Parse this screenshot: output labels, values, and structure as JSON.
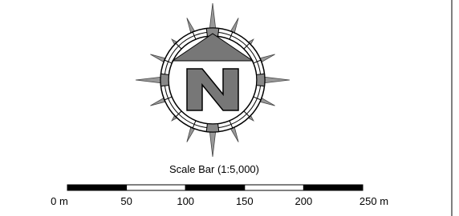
{
  "scale_bar": {
    "title": "Scale Bar (1:5,000)",
    "labels": [
      "0 m",
      "50",
      "100",
      "150",
      "200",
      "250 m"
    ]
  }
}
